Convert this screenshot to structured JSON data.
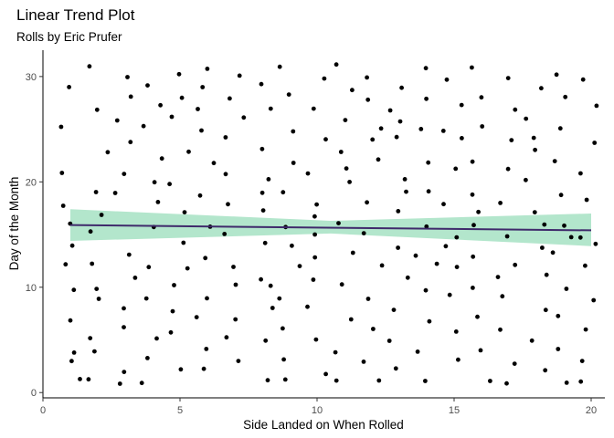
{
  "chart_data": {
    "type": "scatter",
    "title": "Linear Trend Plot",
    "subtitle": "Rolls by Eric Prufer",
    "xlabel": "Side Landed on When Rolled",
    "ylabel": "Day of the Month",
    "xlim": [
      0,
      20.5
    ],
    "ylim": [
      -0.5,
      32.5
    ],
    "xticks": [
      0,
      5,
      10,
      15,
      20
    ],
    "yticks": [
      0,
      10,
      20,
      30
    ],
    "grid": false,
    "legend": "none",
    "point_color": "#000000",
    "trend": {
      "color": "#3f2a6b",
      "band_color": "#b3e6cc",
      "x_range": [
        1,
        20
      ],
      "y_start": 15.9,
      "y_end": 15.4,
      "ci_lower_start": 14.4,
      "ci_upper_start": 17.4,
      "ci_lower_mid": 15.1,
      "ci_upper_mid": 16.3,
      "ci_lower_end": 13.9,
      "ci_upper_end": 17.0
    },
    "points": [
      [
        1,
        16
      ],
      [
        1,
        21
      ],
      [
        1,
        29
      ],
      [
        1,
        25
      ],
      [
        1,
        14
      ],
      [
        1,
        12
      ],
      [
        1,
        10
      ],
      [
        1,
        7
      ],
      [
        1,
        4
      ],
      [
        1,
        3
      ],
      [
        1,
        18
      ],
      [
        1,
        1
      ],
      [
        2,
        31
      ],
      [
        2,
        23
      ],
      [
        2,
        19
      ],
      [
        2,
        17
      ],
      [
        2,
        15
      ],
      [
        2,
        10
      ],
      [
        2,
        9
      ],
      [
        2,
        5
      ],
      [
        2,
        4
      ],
      [
        2,
        1
      ],
      [
        2,
        12
      ],
      [
        2,
        27
      ],
      [
        3,
        30
      ],
      [
        3,
        28
      ],
      [
        3,
        26
      ],
      [
        3,
        21
      ],
      [
        3,
        19
      ],
      [
        3,
        13
      ],
      [
        3,
        11
      ],
      [
        3,
        8
      ],
      [
        3,
        6
      ],
      [
        3,
        2
      ],
      [
        3,
        1
      ],
      [
        3,
        24
      ],
      [
        4,
        29
      ],
      [
        4,
        27
      ],
      [
        4,
        22
      ],
      [
        4,
        18
      ],
      [
        4,
        16
      ],
      [
        4,
        12
      ],
      [
        4,
        9
      ],
      [
        4,
        5
      ],
      [
        4,
        3
      ],
      [
        4,
        1
      ],
      [
        4,
        20
      ],
      [
        4,
        25
      ],
      [
        5,
        30
      ],
      [
        5,
        28
      ],
      [
        5,
        26
      ],
      [
        5,
        23
      ],
      [
        5,
        20
      ],
      [
        5,
        17
      ],
      [
        5,
        14
      ],
      [
        5,
        10
      ],
      [
        5,
        8
      ],
      [
        5,
        6
      ],
      [
        5,
        2
      ],
      [
        5,
        12
      ],
      [
        6,
        31
      ],
      [
        6,
        29
      ],
      [
        6,
        27
      ],
      [
        6,
        25
      ],
      [
        6,
        22
      ],
      [
        6,
        19
      ],
      [
        6,
        16
      ],
      [
        6,
        13
      ],
      [
        6,
        9
      ],
      [
        6,
        7
      ],
      [
        6,
        4
      ],
      [
        6,
        2
      ],
      [
        7,
        30
      ],
      [
        7,
        28
      ],
      [
        7,
        24
      ],
      [
        7,
        21
      ],
      [
        7,
        18
      ],
      [
        7,
        15
      ],
      [
        7,
        12
      ],
      [
        7,
        10
      ],
      [
        7,
        7
      ],
      [
        7,
        5
      ],
      [
        7,
        3
      ],
      [
        7,
        26
      ],
      [
        8,
        29
      ],
      [
        8,
        27
      ],
      [
        8,
        23
      ],
      [
        8,
        20
      ],
      [
        8,
        17
      ],
      [
        8,
        14
      ],
      [
        8,
        11
      ],
      [
        8,
        8
      ],
      [
        8,
        5
      ],
      [
        8,
        1
      ],
      [
        8,
        19
      ],
      [
        8,
        10
      ],
      [
        9,
        31
      ],
      [
        9,
        28
      ],
      [
        9,
        25
      ],
      [
        9,
        22
      ],
      [
        9,
        19
      ],
      [
        9,
        16
      ],
      [
        9,
        12
      ],
      [
        9,
        9
      ],
      [
        9,
        6
      ],
      [
        9,
        3
      ],
      [
        9,
        1
      ],
      [
        9,
        14
      ],
      [
        10,
        30
      ],
      [
        10,
        27
      ],
      [
        10,
        24
      ],
      [
        10,
        21
      ],
      [
        10,
        18
      ],
      [
        10,
        15
      ],
      [
        10,
        11
      ],
      [
        10,
        8
      ],
      [
        10,
        5
      ],
      [
        10,
        2
      ],
      [
        10,
        13
      ],
      [
        10,
        17
      ],
      [
        11,
        31
      ],
      [
        11,
        29
      ],
      [
        11,
        26
      ],
      [
        11,
        23
      ],
      [
        11,
        20
      ],
      [
        11,
        16
      ],
      [
        11,
        13
      ],
      [
        11,
        10
      ],
      [
        11,
        7
      ],
      [
        11,
        4
      ],
      [
        11,
        1
      ],
      [
        11,
        21
      ],
      [
        12,
        30
      ],
      [
        12,
        28
      ],
      [
        12,
        25
      ],
      [
        12,
        22
      ],
      [
        12,
        18
      ],
      [
        12,
        15
      ],
      [
        12,
        12
      ],
      [
        12,
        9
      ],
      [
        12,
        6
      ],
      [
        12,
        3
      ],
      [
        12,
        1
      ],
      [
        12,
        24
      ],
      [
        13,
        29
      ],
      [
        13,
        27
      ],
      [
        13,
        24
      ],
      [
        13,
        20
      ],
      [
        13,
        17
      ],
      [
        13,
        14
      ],
      [
        13,
        11
      ],
      [
        13,
        8
      ],
      [
        13,
        5
      ],
      [
        13,
        2
      ],
      [
        13,
        19
      ],
      [
        13,
        26
      ],
      [
        14,
        31
      ],
      [
        14,
        28
      ],
      [
        14,
        25
      ],
      [
        14,
        22
      ],
      [
        14,
        19
      ],
      [
        14,
        16
      ],
      [
        14,
        13
      ],
      [
        14,
        10
      ],
      [
        14,
        7
      ],
      [
        14,
        4
      ],
      [
        14,
        1
      ],
      [
        14,
        12
      ],
      [
        15,
        30
      ],
      [
        15,
        27
      ],
      [
        15,
        24
      ],
      [
        15,
        21
      ],
      [
        15,
        18
      ],
      [
        15,
        15
      ],
      [
        15,
        12
      ],
      [
        15,
        9
      ],
      [
        15,
        6
      ],
      [
        15,
        3
      ],
      [
        15,
        25
      ],
      [
        15,
        14
      ],
      [
        16,
        31
      ],
      [
        16,
        28
      ],
      [
        16,
        25
      ],
      [
        16,
        22
      ],
      [
        16,
        19
      ],
      [
        16,
        16
      ],
      [
        16,
        13
      ],
      [
        16,
        10
      ],
      [
        16,
        7
      ],
      [
        16,
        4
      ],
      [
        16,
        1
      ],
      [
        16,
        17
      ],
      [
        17,
        30
      ],
      [
        17,
        27
      ],
      [
        17,
        24
      ],
      [
        17,
        21
      ],
      [
        17,
        18
      ],
      [
        17,
        15
      ],
      [
        17,
        12
      ],
      [
        17,
        9
      ],
      [
        17,
        6
      ],
      [
        17,
        3
      ],
      [
        17,
        1
      ],
      [
        17,
        11
      ],
      [
        18,
        29
      ],
      [
        18,
        26
      ],
      [
        18,
        23
      ],
      [
        18,
        20
      ],
      [
        18,
        17
      ],
      [
        18,
        14
      ],
      [
        18,
        11
      ],
      [
        18,
        8
      ],
      [
        18,
        5
      ],
      [
        18,
        2
      ],
      [
        18,
        16
      ],
      [
        18,
        24
      ],
      [
        19,
        30
      ],
      [
        19,
        28
      ],
      [
        19,
        25
      ],
      [
        19,
        22
      ],
      [
        19,
        19
      ],
      [
        19,
        16
      ],
      [
        19,
        13
      ],
      [
        19,
        10
      ],
      [
        19,
        7
      ],
      [
        19,
        4
      ],
      [
        19,
        1
      ],
      [
        19,
        15
      ],
      [
        20,
        30
      ],
      [
        20,
        27
      ],
      [
        20,
        24
      ],
      [
        20,
        21
      ],
      [
        20,
        18
      ],
      [
        20,
        15
      ],
      [
        20,
        12
      ],
      [
        20,
        9
      ],
      [
        20,
        6
      ],
      [
        20,
        3
      ],
      [
        20,
        1
      ],
      [
        20,
        14
      ]
    ]
  }
}
